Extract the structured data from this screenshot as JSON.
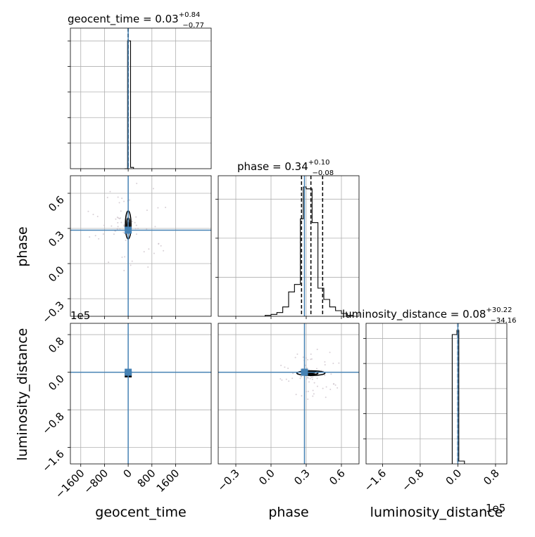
{
  "figure": {
    "truth_color": "#4682b4",
    "hist_color": "#000000",
    "offset_labels": {
      "ld_y": "1e5",
      "ld_x": "1e5"
    }
  },
  "chart_data": {
    "type": "corner",
    "parameters": [
      "geocent_time",
      "phase",
      "luminosity_distance"
    ],
    "axis_labels": {
      "geocent_time": "geocent_time",
      "phase": "phase",
      "luminosity_distance": "luminosity_distance"
    },
    "ranges": {
      "geocent_time": [
        -1950,
        2800
      ],
      "phase": [
        -0.45,
        0.75
      ],
      "luminosity_distance": [
        -1.95,
        1.04
      ]
    },
    "ticks": {
      "geocent_time": {
        "values": [
          -1600,
          -800,
          0,
          800,
          1600
        ],
        "labels": [
          "−1600",
          "−800",
          "0",
          "800",
          "1600"
        ]
      },
      "phase": {
        "values": [
          -0.3,
          0.0,
          0.3,
          0.6
        ],
        "labels": [
          "−0.3",
          "0.0",
          "0.3",
          "0.6"
        ]
      },
      "luminosity_distance": {
        "values": [
          -1.6,
          -0.8,
          0.0,
          0.8
        ],
        "labels": [
          "−1.6",
          "−0.8",
          "0.0",
          "0.8"
        ]
      }
    },
    "titles": {
      "geocent_time": {
        "name": "geocent_time",
        "median": "0.03",
        "plus": "+0.84",
        "minus": "−0.77"
      },
      "phase": {
        "name": "phase",
        "median": "0.34",
        "plus": "+0.10",
        "minus": "−0.08"
      },
      "luminosity_distance": {
        "name": "luminosity_distance",
        "median": "0.08",
        "plus": "+30.22",
        "minus": "−34.16"
      }
    },
    "truths": {
      "geocent_time": 0,
      "phase": 0.285,
      "luminosity_distance": 0
    },
    "quantiles": {
      "geocent_time": [
        -0.77,
        0.03,
        0.87
      ],
      "phase": [
        0.26,
        0.34,
        0.44
      ],
      "luminosity_distance": [
        -0.0003,
        8e-07,
        0.0003
      ]
    },
    "histograms": {
      "geocent_time": {
        "edges": [
          -120,
          -20,
          80,
          180
        ],
        "counts": [
          0.0,
          1.0,
          0.01
        ],
        "ymax": 1.1
      },
      "phase": {
        "edges": [
          -0.05,
          0.0,
          0.05,
          0.1,
          0.15,
          0.2,
          0.25,
          0.275,
          0.3,
          0.35,
          0.4,
          0.45,
          0.5,
          0.55,
          0.6,
          0.65,
          0.7
        ],
        "counts": [
          0.005,
          0.01,
          0.02,
          0.05,
          0.13,
          0.17,
          0.52,
          0.69,
          0.68,
          0.5,
          0.15,
          0.09,
          0.05,
          0.03,
          0.015,
          0.005
        ],
        "ymax": 0.75
      },
      "luminosity_distance": {
        "edges": [
          -0.12,
          -0.02,
          0.02,
          0.14
        ],
        "counts": [
          0.92,
          0.95,
          0.02
        ],
        "ymax": 1.0
      }
    },
    "contours": [
      {
        "x": "geocent_time",
        "y": "phase",
        "center": [
          0,
          0.33
        ],
        "halfwidths": [
          [
            55,
            0.06
          ],
          [
            95,
            0.12
          ]
        ]
      },
      {
        "x": "phase",
        "y": "luminosity_distance",
        "center": [
          0.34,
          -0.02
        ],
        "halfwidths": [
          [
            0.06,
            0.03
          ],
          [
            0.12,
            0.05
          ]
        ]
      }
    ],
    "grid": true
  }
}
